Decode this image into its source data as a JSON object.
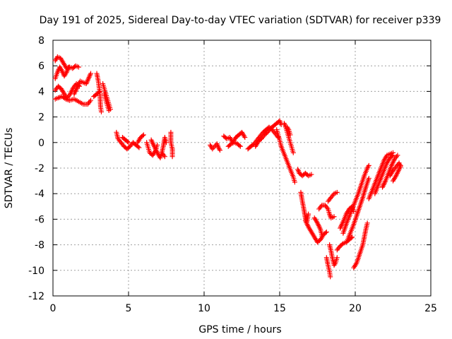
{
  "chart_data": {
    "type": "scatter",
    "title": "Day 191 of 2025, Sidereal Day-to-day VTEC variation (SDTVAR) for receiver p339",
    "xlabel": "GPS time / hours",
    "ylabel": "SDTVAR / TECUs",
    "xlim": [
      0,
      25
    ],
    "ylim": [
      -12,
      8
    ],
    "xticks": [
      0,
      5,
      10,
      15,
      20,
      25
    ],
    "yticks": [
      -12,
      -10,
      -8,
      -6,
      -4,
      -2,
      0,
      2,
      4,
      6,
      8
    ],
    "grid": true,
    "marker": "+",
    "series": [
      {
        "color": "#ff0000",
        "segments": [
          [
            [
              0.15,
              6.4
            ],
            [
              0.3,
              6.7
            ],
            [
              0.5,
              6.6
            ],
            [
              0.7,
              6.2
            ],
            [
              0.9,
              5.8
            ],
            [
              1.1,
              5.9
            ],
            [
              1.3,
              5.8
            ],
            [
              1.5,
              6.0
            ],
            [
              1.7,
              5.9
            ]
          ],
          [
            [
              0.15,
              5.0
            ],
            [
              0.3,
              5.5
            ],
            [
              0.45,
              5.9
            ],
            [
              0.6,
              5.6
            ],
            [
              0.75,
              5.2
            ],
            [
              0.9,
              5.5
            ],
            [
              1.05,
              5.9
            ]
          ],
          [
            [
              0.15,
              4.1
            ],
            [
              0.35,
              4.4
            ],
            [
              0.55,
              4.2
            ],
            [
              0.75,
              3.8
            ],
            [
              0.95,
              3.5
            ],
            [
              1.15,
              3.8
            ],
            [
              1.35,
              4.3
            ],
            [
              1.55,
              4.6
            ],
            [
              1.75,
              4.4
            ]
          ],
          [
            [
              0.15,
              3.4
            ],
            [
              0.35,
              3.5
            ],
            [
              0.6,
              3.6
            ],
            [
              0.85,
              3.4
            ],
            [
              1.1,
              3.3
            ],
            [
              1.4,
              3.4
            ],
            [
              1.7,
              3.2
            ],
            [
              2.0,
              3.0
            ],
            [
              2.3,
              3.0
            ],
            [
              2.5,
              3.3
            ]
          ],
          [
            [
              1.4,
              3.8
            ],
            [
              1.6,
              4.3
            ],
            [
              1.8,
              4.8
            ],
            [
              2.0,
              4.7
            ],
            [
              2.2,
              4.6
            ],
            [
              2.35,
              5.0
            ],
            [
              2.5,
              5.4
            ]
          ],
          [
            [
              2.9,
              5.4
            ],
            [
              3.0,
              4.8
            ],
            [
              3.1,
              3.9
            ],
            [
              3.15,
              2.8
            ],
            [
              3.2,
              2.4
            ]
          ],
          [
            [
              2.7,
              3.6
            ],
            [
              2.9,
              3.8
            ],
            [
              3.1,
              4.0
            ]
          ],
          [
            [
              3.3,
              4.6
            ],
            [
              3.4,
              4.2
            ],
            [
              3.5,
              3.8
            ],
            [
              3.6,
              3.4
            ],
            [
              3.7,
              3.0
            ],
            [
              3.8,
              2.6
            ]
          ],
          [
            [
              3.4,
              3.8
            ],
            [
              3.5,
              3.3
            ],
            [
              3.6,
              2.9
            ],
            [
              3.7,
              2.5
            ]
          ],
          [
            [
              4.2,
              0.8
            ],
            [
              4.3,
              0.3
            ],
            [
              4.5,
              0.0
            ],
            [
              4.7,
              -0.3
            ],
            [
              4.9,
              -0.5
            ],
            [
              5.1,
              -0.3
            ],
            [
              5.3,
              0.0
            ],
            [
              5.5,
              -0.2
            ],
            [
              5.7,
              -0.4
            ]
          ],
          [
            [
              4.6,
              0.4
            ],
            [
              4.8,
              0.2
            ],
            [
              5.0,
              0.0
            ]
          ],
          [
            [
              5.6,
              0.0
            ],
            [
              5.8,
              0.4
            ],
            [
              6.0,
              0.6
            ]
          ],
          [
            [
              6.2,
              0.0
            ],
            [
              6.3,
              -0.4
            ],
            [
              6.4,
              -0.8
            ],
            [
              6.6,
              -1.0
            ],
            [
              6.8,
              -0.6
            ],
            [
              6.9,
              -0.2
            ]
          ],
          [
            [
              6.5,
              0.2
            ],
            [
              6.7,
              -0.3
            ],
            [
              6.9,
              -0.8
            ],
            [
              7.1,
              -1.2
            ],
            [
              7.2,
              -0.8
            ],
            [
              7.3,
              -0.3
            ],
            [
              7.4,
              0.4
            ],
            [
              7.5,
              0.0
            ]
          ],
          [
            [
              7.2,
              -0.8
            ],
            [
              7.4,
              -1.1
            ]
          ],
          [
            [
              7.8,
              0.8
            ],
            [
              7.8,
              0.0
            ],
            [
              7.9,
              -0.5
            ],
            [
              7.9,
              -1.1
            ]
          ],
          [
            [
              10.4,
              -0.2
            ],
            [
              10.55,
              -0.5
            ],
            [
              10.7,
              -0.3
            ],
            [
              10.85,
              -0.1
            ],
            [
              10.95,
              -0.4
            ],
            [
              11.05,
              -0.6
            ]
          ],
          [
            [
              11.3,
              0.5
            ],
            [
              11.5,
              0.3
            ],
            [
              11.7,
              0.4
            ],
            [
              11.9,
              0.0
            ],
            [
              12.1,
              0.4
            ],
            [
              12.3,
              0.6
            ],
            [
              12.5,
              0.8
            ],
            [
              12.7,
              0.4
            ]
          ],
          [
            [
              11.6,
              -0.3
            ],
            [
              11.8,
              -0.1
            ],
            [
              12.0,
              0.0
            ],
            [
              12.2,
              -0.1
            ],
            [
              12.4,
              -0.3
            ]
          ],
          [
            [
              12.9,
              -0.5
            ],
            [
              13.1,
              -0.3
            ],
            [
              13.3,
              -0.1
            ],
            [
              13.5,
              0.2
            ],
            [
              13.7,
              0.5
            ],
            [
              13.9,
              0.8
            ],
            [
              14.1,
              1.0
            ],
            [
              14.3,
              1.2
            ],
            [
              14.5,
              1.0
            ],
            [
              14.7,
              0.7
            ],
            [
              14.9,
              0.4
            ]
          ],
          [
            [
              13.4,
              -0.3
            ],
            [
              13.6,
              0.1
            ],
            [
              13.8,
              0.3
            ],
            [
              14.0,
              0.6
            ],
            [
              14.2,
              0.8
            ],
            [
              14.4,
              1.1
            ],
            [
              14.6,
              1.3
            ],
            [
              14.8,
              1.5
            ],
            [
              15.0,
              1.7
            ],
            [
              15.1,
              1.4
            ]
          ],
          [
            [
              14.8,
              1.0
            ],
            [
              14.9,
              0.6
            ],
            [
              15.0,
              0.2
            ],
            [
              15.1,
              -0.3
            ],
            [
              15.3,
              -0.9
            ],
            [
              15.5,
              -1.5
            ],
            [
              15.7,
              -2.1
            ],
            [
              15.9,
              -2.7
            ],
            [
              16.0,
              -3.1
            ]
          ],
          [
            [
              15.3,
              1.5
            ],
            [
              15.4,
              1.2
            ],
            [
              15.5,
              0.8
            ],
            [
              15.6,
              0.4
            ],
            [
              15.7,
              0.0
            ],
            [
              15.8,
              -0.4
            ],
            [
              15.9,
              -0.8
            ]
          ],
          [
            [
              15.5,
              1.2
            ],
            [
              15.6,
              1.0
            ],
            [
              15.7,
              0.6
            ]
          ],
          [
            [
              16.2,
              -2.1
            ],
            [
              16.3,
              -2.4
            ],
            [
              16.5,
              -2.6
            ],
            [
              16.7,
              -2.4
            ],
            [
              16.9,
              -2.6
            ],
            [
              17.1,
              -2.5
            ]
          ],
          [
            [
              16.4,
              -3.9
            ],
            [
              16.5,
              -4.6
            ],
            [
              16.6,
              -5.2
            ],
            [
              16.7,
              -5.9
            ],
            [
              16.8,
              -6.2
            ],
            [
              16.9,
              -5.6
            ]
          ],
          [
            [
              16.7,
              -6.1
            ],
            [
              16.9,
              -6.6
            ],
            [
              17.1,
              -7.0
            ],
            [
              17.3,
              -7.4
            ],
            [
              17.5,
              -7.8
            ],
            [
              17.7,
              -7.6
            ],
            [
              17.9,
              -7.2
            ],
            [
              18.1,
              -7.0
            ]
          ],
          [
            [
              17.3,
              -5.9
            ],
            [
              17.5,
              -6.3
            ],
            [
              17.7,
              -6.8
            ],
            [
              17.8,
              -7.3
            ]
          ],
          [
            [
              17.6,
              -5.2
            ],
            [
              17.8,
              -4.9
            ],
            [
              18.0,
              -4.9
            ],
            [
              18.2,
              -5.2
            ],
            [
              18.3,
              -5.6
            ],
            [
              18.4,
              -5.9
            ],
            [
              18.6,
              -5.8
            ]
          ],
          [
            [
              18.1,
              -9.0
            ],
            [
              18.2,
              -9.6
            ],
            [
              18.3,
              -10.1
            ],
            [
              18.35,
              -10.5
            ]
          ],
          [
            [
              18.3,
              -8.0
            ],
            [
              18.4,
              -8.5
            ],
            [
              18.5,
              -9.1
            ],
            [
              18.6,
              -9.6
            ],
            [
              18.7,
              -9.4
            ],
            [
              18.8,
              -9.0
            ]
          ],
          [
            [
              18.2,
              -4.6
            ],
            [
              18.4,
              -4.3
            ],
            [
              18.6,
              -4.0
            ],
            [
              18.8,
              -3.9
            ]
          ],
          [
            [
              18.8,
              -8.4
            ],
            [
              19.0,
              -8.1
            ],
            [
              19.2,
              -7.9
            ],
            [
              19.4,
              -7.8
            ],
            [
              19.6,
              -7.6
            ],
            [
              19.8,
              -7.4
            ]
          ],
          [
            [
              19.0,
              -6.7
            ],
            [
              19.2,
              -6.2
            ],
            [
              19.4,
              -5.6
            ],
            [
              19.6,
              -5.2
            ],
            [
              19.8,
              -5.0
            ],
            [
              19.9,
              -5.4
            ]
          ],
          [
            [
              19.2,
              -7.1
            ],
            [
              19.4,
              -6.4
            ],
            [
              19.6,
              -5.8
            ],
            [
              19.8,
              -5.2
            ],
            [
              20.0,
              -4.6
            ],
            [
              20.2,
              -4.0
            ],
            [
              20.4,
              -3.3
            ],
            [
              20.6,
              -2.6
            ],
            [
              20.8,
              -2.0
            ],
            [
              20.9,
              -1.8
            ]
          ],
          [
            [
              19.5,
              -7.6
            ],
            [
              19.7,
              -7.0
            ],
            [
              19.9,
              -6.4
            ],
            [
              20.1,
              -5.7
            ],
            [
              20.3,
              -5.0
            ],
            [
              20.5,
              -4.3
            ],
            [
              20.7,
              -3.5
            ],
            [
              20.9,
              -2.8
            ]
          ],
          [
            [
              19.9,
              -9.8
            ],
            [
              20.1,
              -9.4
            ],
            [
              20.3,
              -8.7
            ],
            [
              20.5,
              -8.0
            ],
            [
              20.6,
              -7.4
            ],
            [
              20.7,
              -6.8
            ],
            [
              20.8,
              -6.3
            ]
          ],
          [
            [
              20.9,
              -4.4
            ],
            [
              21.1,
              -3.8
            ],
            [
              21.3,
              -3.2
            ],
            [
              21.5,
              -2.6
            ],
            [
              21.7,
              -2.0
            ],
            [
              21.9,
              -1.4
            ],
            [
              22.1,
              -1.0
            ],
            [
              22.3,
              -0.9
            ],
            [
              22.5,
              -0.8
            ]
          ],
          [
            [
              21.3,
              -4.0
            ],
            [
              21.5,
              -3.4
            ],
            [
              21.7,
              -2.8
            ],
            [
              21.9,
              -2.2
            ],
            [
              22.1,
              -1.6
            ],
            [
              22.3,
              -1.2
            ],
            [
              22.5,
              -1.0
            ]
          ],
          [
            [
              21.8,
              -3.5
            ],
            [
              22.0,
              -3.0
            ],
            [
              22.2,
              -2.4
            ],
            [
              22.4,
              -1.8
            ],
            [
              22.6,
              -1.3
            ],
            [
              22.8,
              -1.0
            ]
          ],
          [
            [
              22.3,
              -2.6
            ],
            [
              22.5,
              -2.2
            ],
            [
              22.7,
              -1.9
            ],
            [
              22.9,
              -1.6
            ],
            [
              23.0,
              -1.9
            ]
          ],
          [
            [
              22.5,
              -3.0
            ],
            [
              22.7,
              -2.6
            ],
            [
              22.9,
              -2.1
            ],
            [
              23.0,
              -1.8
            ]
          ]
        ]
      }
    ]
  }
}
